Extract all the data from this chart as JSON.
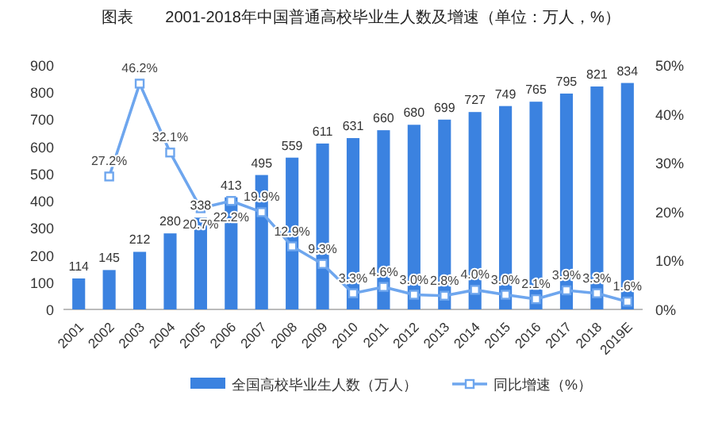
{
  "chart_data": {
    "type": "bar",
    "title": "图表　　2001-2018年中国普通高校毕业生人数及增速（单位：万人，%）",
    "categories": [
      "2001",
      "2002",
      "2003",
      "2004",
      "2005",
      "2006",
      "2007",
      "2008",
      "2009",
      "2010",
      "2011",
      "2012",
      "2013",
      "2014",
      "2015",
      "2016",
      "2017",
      "2018",
      "2019E"
    ],
    "series": [
      {
        "name": "全国高校毕业生人数（万人）",
        "color": "#3b82e0",
        "values": [
          114,
          145,
          212,
          280,
          338,
          413,
          495,
          559,
          611,
          631,
          660,
          680,
          699,
          727,
          749,
          765,
          795,
          821,
          834
        ],
        "value_labels": [
          "114",
          "145",
          "212",
          "280",
          "338",
          "413",
          "495",
          "559",
          "611",
          "631",
          "660",
          "680",
          "699",
          "727",
          "749",
          "765",
          "795",
          "821",
          "834"
        ]
      },
      {
        "name": "同比增速（%）",
        "type": "line",
        "axis": "y2",
        "color": "#6ea6ee",
        "marker": "square",
        "values": [
          null,
          27.2,
          46.2,
          32.1,
          20.7,
          22.2,
          19.9,
          12.9,
          9.3,
          3.3,
          4.6,
          3.0,
          2.8,
          4.0,
          3.0,
          2.1,
          3.9,
          3.3,
          1.6
        ],
        "value_labels": [
          null,
          "27.2%",
          "46.2%",
          "32.1%",
          "20.7%",
          "22.2%",
          "19.9%",
          "12.9%",
          "9.3%",
          "3.3%",
          "4.6%",
          "3.0%",
          "2.8%",
          "4.0%",
          "3.0%",
          "2.1%",
          "3.9%",
          "3.3%",
          "1.6%"
        ]
      }
    ],
    "ylim": [
      0,
      900
    ],
    "yticks": [
      0,
      100,
      200,
      300,
      400,
      500,
      600,
      700,
      800,
      900
    ],
    "y2lim": [
      0,
      50
    ],
    "y2ticks": [
      {
        "value": 0,
        "label": "0%"
      },
      {
        "value": 10,
        "label": "10%"
      },
      {
        "value": 20,
        "label": "20%"
      },
      {
        "value": 30,
        "label": "30%"
      },
      {
        "value": 40,
        "label": "40%"
      },
      {
        "value": 50,
        "label": "50%"
      }
    ],
    "legend": "bottom"
  }
}
